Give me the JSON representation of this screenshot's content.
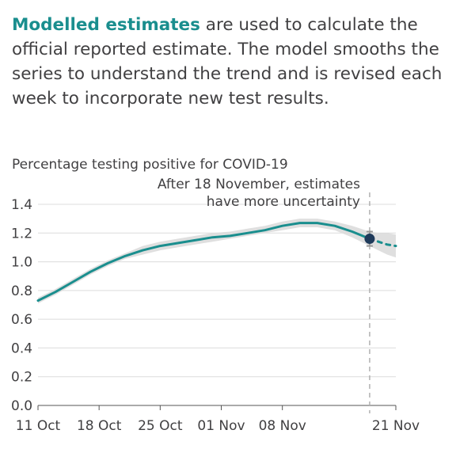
{
  "intro": {
    "highlight": "Modelled estimates",
    "text": " are used to calculate the official reported estimate. The model smooths the series to understand the trend and is revised each week to incorporate new test results."
  },
  "colors": {
    "accent": "#1a8e8e",
    "band": "#d9d9d9",
    "marker": "#1f3a5a",
    "grid": "#dcdcdc",
    "annotation_line": "#b0b0b0"
  },
  "chart_data": {
    "type": "line",
    "title": "Percentage testing positive for COVID-19",
    "xlabel": "",
    "ylabel": "",
    "x_ticks": [
      "11 Oct",
      "18 Oct",
      "25 Oct",
      "01 Nov",
      "08 Nov",
      "21 Nov"
    ],
    "x_range": [
      "2020-10-11",
      "2020-11-21"
    ],
    "ylim": [
      0,
      1.4
    ],
    "y_ticks": [
      0.0,
      0.2,
      0.4,
      0.6,
      0.8,
      1.0,
      1.2,
      1.4
    ],
    "grid": true,
    "annotation": {
      "date": "2020-11-18",
      "line1": "After 18 November, estimates",
      "line2": "have more uncertainty"
    },
    "series": [
      {
        "dates": [
          "2020-10-11",
          "2020-10-13",
          "2020-10-15",
          "2020-10-17",
          "2020-10-19",
          "2020-10-21",
          "2020-10-23",
          "2020-10-25",
          "2020-10-27",
          "2020-10-29",
          "2020-10-31",
          "2020-11-02",
          "2020-11-04",
          "2020-11-06",
          "2020-11-08",
          "2020-11-10",
          "2020-11-12",
          "2020-11-14",
          "2020-11-16",
          "2020-11-18"
        ],
        "values": [
          0.73,
          0.79,
          0.86,
          0.93,
          0.99,
          1.04,
          1.08,
          1.11,
          1.13,
          1.15,
          1.17,
          1.18,
          1.2,
          1.22,
          1.25,
          1.27,
          1.27,
          1.25,
          1.21,
          1.16
        ],
        "lower": [
          0.71,
          0.77,
          0.84,
          0.91,
          0.97,
          1.02,
          1.05,
          1.08,
          1.1,
          1.12,
          1.14,
          1.16,
          1.18,
          1.2,
          1.22,
          1.24,
          1.24,
          1.22,
          1.17,
          1.11
        ],
        "upper": [
          0.75,
          0.81,
          0.88,
          0.95,
          1.01,
          1.06,
          1.11,
          1.14,
          1.16,
          1.18,
          1.2,
          1.21,
          1.23,
          1.25,
          1.28,
          1.3,
          1.3,
          1.28,
          1.25,
          1.21
        ]
      },
      {
        "style": "dashed",
        "dates": [
          "2020-11-18",
          "2020-11-19",
          "2020-11-20",
          "2020-11-21"
        ],
        "values": [
          1.16,
          1.14,
          1.12,
          1.11
        ],
        "lower": [
          1.11,
          1.08,
          1.05,
          1.03
        ],
        "upper": [
          1.21,
          1.2,
          1.2,
          1.19
        ]
      }
    ],
    "marker": {
      "date": "2020-11-18",
      "value": 1.16,
      "lower": 1.11,
      "upper": 1.21
    }
  }
}
